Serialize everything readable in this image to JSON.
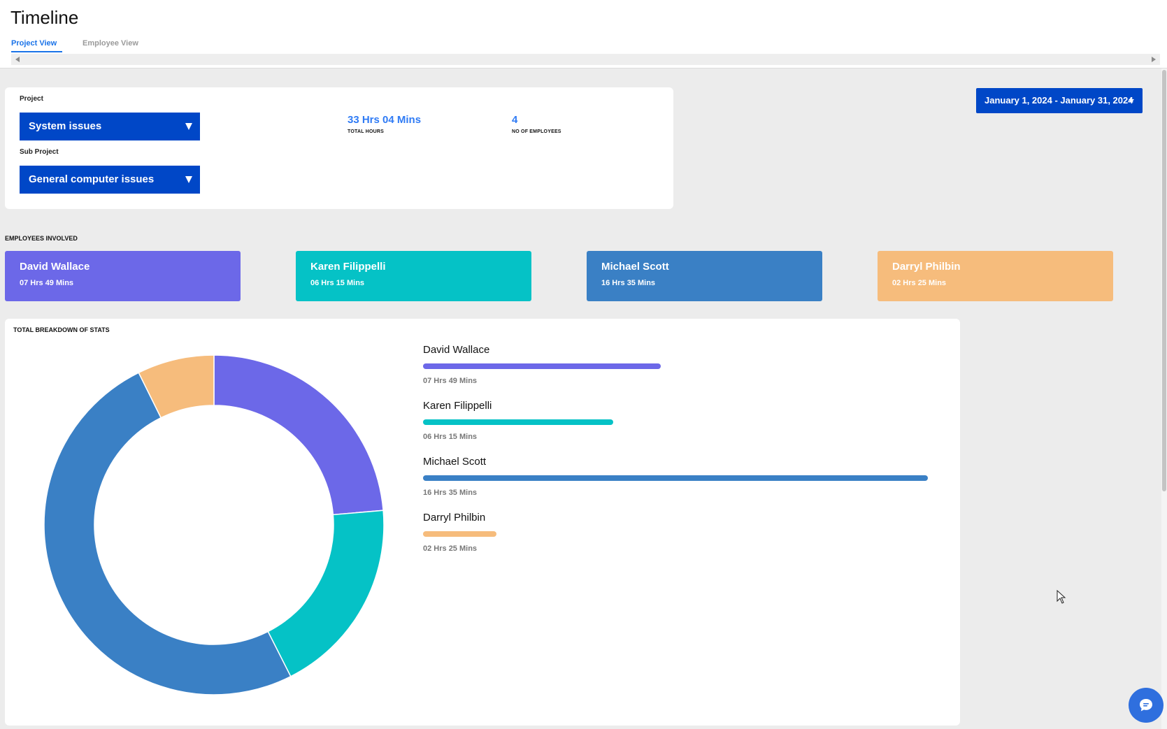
{
  "header": {
    "title": "Timeline",
    "tabs": [
      {
        "label": "Project View",
        "active": true
      },
      {
        "label": "Employee View",
        "active": false
      }
    ]
  },
  "filters": {
    "project_label": "Project",
    "project_value": "System issues",
    "subproject_label": "Sub Project",
    "subproject_value": "General computer issues"
  },
  "summary": {
    "total_hours_value": "33 Hrs 04 Mins",
    "total_hours_label": "TOTAL HOURS",
    "employees_value": "4",
    "employees_label": "NO OF EMPLOYEES"
  },
  "date_range": "January 1, 2024 - January 31, 2024",
  "employees_heading": "EMPLOYEES INVOLVED",
  "employees": [
    {
      "name": "David Wallace",
      "hours": "07 Hrs 49 Mins",
      "color": "#6c68e8"
    },
    {
      "name": "Karen Filippelli",
      "hours": "06 Hrs 15 Mins",
      "color": "#05c2c6"
    },
    {
      "name": "Michael Scott",
      "hours": "16 Hrs 35 Mins",
      "color": "#3a80c5"
    },
    {
      "name": "Darryl Philbin",
      "hours": "02 Hrs 25 Mins",
      "color": "#f6bc7c"
    }
  ],
  "breakdown_heading": "TOTAL BREAKDOWN OF STATS",
  "chart_data": {
    "type": "pie",
    "categories": [
      "David Wallace",
      "Karen Filippelli",
      "Michael Scott",
      "Darryl Philbin"
    ],
    "values": [
      469,
      375,
      995,
      145
    ],
    "unit": "minutes",
    "colors": [
      "#6c68e8",
      "#05c2c6",
      "#3a80c5",
      "#f6bc7c"
    ]
  },
  "colors": {
    "accent": "#0047c7",
    "link": "#2f7bf5"
  },
  "icons": {
    "chat": "chat-bubble-icon",
    "cursor": "mouse-pointer-icon"
  }
}
